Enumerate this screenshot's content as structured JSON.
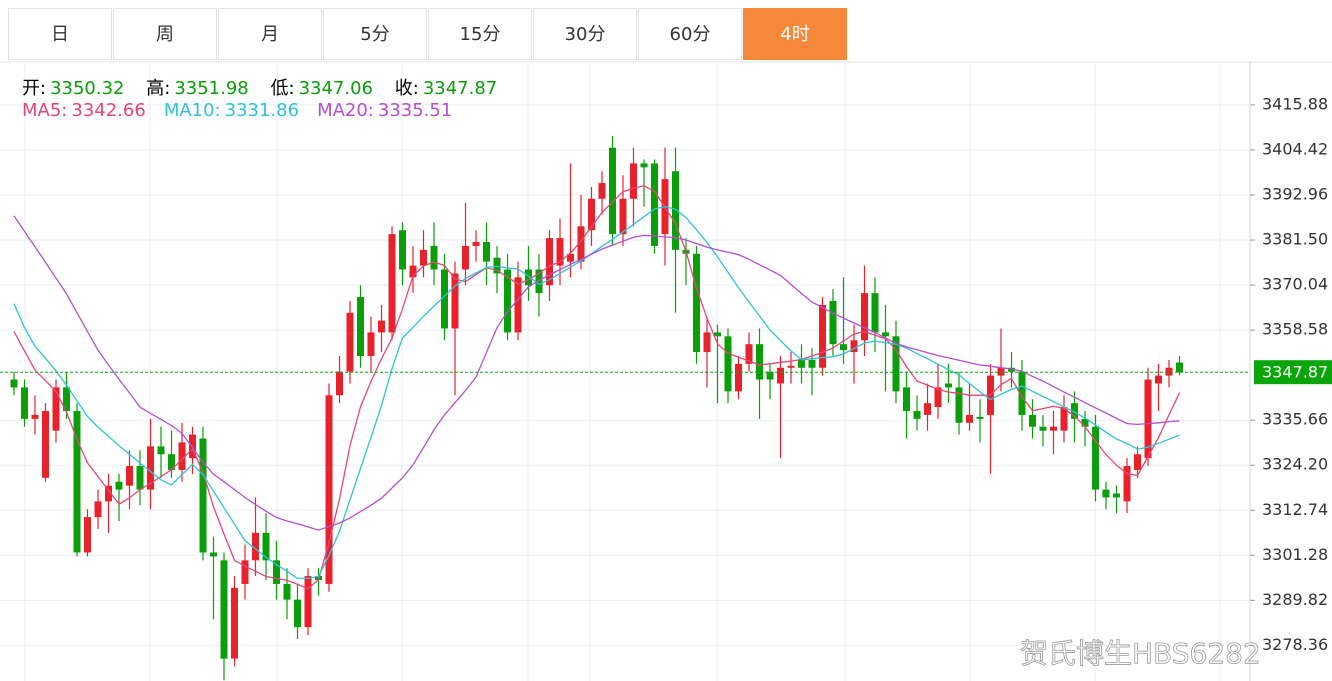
{
  "tabs": [
    {
      "label": "日",
      "active": false
    },
    {
      "label": "周",
      "active": false
    },
    {
      "label": "月",
      "active": false
    },
    {
      "label": "5分",
      "active": false
    },
    {
      "label": "15分",
      "active": false
    },
    {
      "label": "30分",
      "active": false
    },
    {
      "label": "60分",
      "active": false
    },
    {
      "label": "4时",
      "active": true
    }
  ],
  "watermark": "贺氏博生HBS6282",
  "chart_data": {
    "type": "candlestick",
    "ohlc_labels": {
      "open": "开:",
      "high": "高:",
      "low": "低:",
      "close": "收:"
    },
    "up_color": "#e8222b",
    "down_color": "#0a9e0a",
    "ohlc_value_color": "#0a9e0a",
    "open": [
      3346,
      3344,
      3336,
      3321,
      3333,
      3344,
      3338,
      3302,
      3311,
      3315,
      3320,
      3319,
      3324,
      3318,
      3329,
      3327,
      3323,
      3326,
      3331,
      3302,
      3300,
      3275,
      3294,
      3300,
      3307,
      3300,
      3294,
      3290,
      3283,
      3296,
      3294,
      3342,
      3348,
      3367,
      3352,
      3358,
      3358,
      3384,
      3372,
      3375,
      3380,
      3374,
      3359,
      3374,
      3380,
      3381,
      3377,
      3374,
      3358,
      3374,
      3374,
      3370,
      3375,
      3376,
      3376,
      3384,
      3392,
      3405,
      3383,
      3392,
      3401,
      3401,
      3383,
      3399,
      3379,
      3378,
      3353,
      3358,
      3357,
      3343,
      3350,
      3355,
      3348,
      3345,
      3349,
      3351,
      3351,
      3349,
      3366,
      3355,
      3353,
      3356,
      3368,
      3358,
      3357,
      3344,
      3338,
      3337,
      3339,
      3345,
      3344,
      3335,
      3336.5,
      3337,
      3347,
      3349,
      3348,
      3337,
      3334,
      3333,
      3333,
      3340,
      3336,
      3334,
      3318,
      3317,
      3315,
      3323,
      3326,
      3345,
      3347,
      3350.32
    ],
    "high": [
      3348,
      3346,
      3342,
      3340,
      3346,
      3348,
      3340,
      3313,
      3318,
      3322,
      3322,
      3328,
      3328,
      3336,
      3334,
      3333,
      3335,
      3334,
      3334,
      3306,
      3302,
      3296,
      3304,
      3316,
      3312,
      3305,
      3298,
      3294,
      3298,
      3298,
      3345,
      3352,
      3366,
      3370,
      3362,
      3365,
      3385,
      3386,
      3380,
      3384,
      3386,
      3378,
      3376,
      3391,
      3384,
      3386,
      3380,
      3378,
      3376,
      3380,
      3378,
      3384,
      3387,
      3401,
      3393,
      3395,
      3399,
      3408,
      3398,
      3405,
      3402,
      3402,
      3405,
      3405,
      3382,
      3380,
      3362,
      3360,
      3359,
      3352,
      3358,
      3359,
      3350,
      3352,
      3353,
      3355,
      3354,
      3367,
      3369,
      3372,
      3360,
      3375,
      3372,
      3365,
      3361,
      3348,
      3342,
      3345,
      3350,
      3350,
      3348,
      3345,
      3341,
      3350,
      3359,
      3353,
      3351,
      3341,
      3337,
      3338,
      3342,
      3343,
      3338,
      3337,
      3320,
      3319,
      3326,
      3329,
      3349,
      3350,
      3351,
      3351.98
    ],
    "low": [
      3342,
      3334,
      3332,
      3320,
      3330,
      3336,
      3301,
      3301,
      3308,
      3307,
      3310,
      3313,
      3314,
      3313,
      3321,
      3321,
      3320,
      3322,
      3300,
      3285,
      3269.5,
      3273,
      3290,
      3296,
      3295,
      3290,
      3285,
      3280,
      3281,
      3291,
      3292,
      3340,
      3345,
      3349,
      3348,
      3353,
      3356,
      3370,
      3368,
      3372,
      3370,
      3356,
      3342,
      3370,
      3376,
      3370,
      3368,
      3356,
      3356,
      3366,
      3362,
      3366,
      3370,
      3372,
      3374,
      3380,
      3388,
      3380,
      3380,
      3385,
      3390,
      3378,
      3375,
      3363,
      3370,
      3350,
      3344,
      3340,
      3340,
      3341,
      3348,
      3336,
      3341,
      3326,
      3345,
      3345,
      3342,
      3347,
      3352,
      3350,
      3345,
      3352,
      3353,
      3343,
      3340,
      3331,
      3333,
      3333,
      3336,
      3340,
      3332,
      3333,
      3330,
      3322,
      3343,
      3344,
      3333,
      3331,
      3329,
      3327,
      3330,
      3330,
      3329,
      3315,
      3313,
      3312,
      3312,
      3321,
      3324,
      3338,
      3344,
      3347.06
    ],
    "close": [
      3344,
      3336,
      3337,
      3338,
      3344,
      3338,
      3302,
      3311,
      3315,
      3319,
      3318,
      3324,
      3318,
      3329,
      3327,
      3323,
      3330,
      3332,
      3302,
      3301,
      3275,
      3293,
      3300,
      3307,
      3300,
      3294,
      3290,
      3283,
      3296,
      3295,
      3342,
      3348,
      3363,
      3352,
      3358,
      3361,
      3383,
      3374,
      3375,
      3379,
      3374,
      3359,
      3373,
      3380,
      3381,
      3376,
      3373,
      3358,
      3372,
      3370,
      3368,
      3382,
      3382,
      3378,
      3385,
      3392,
      3396,
      3383,
      3392,
      3401,
      3400,
      3380,
      3397,
      3379,
      3378,
      3353,
      3358,
      3357,
      3343,
      3350,
      3355,
      3346,
      3346,
      3349,
      3349.5,
      3349,
      3349,
      3365,
      3355,
      3353.5,
      3356,
      3368,
      3358,
      3357,
      3343,
      3338,
      3336,
      3340,
      3344,
      3344,
      3335,
      3337,
      3336,
      3347,
      3349,
      3348,
      3337,
      3334,
      3333,
      3334,
      3339,
      3336,
      3334,
      3318,
      3316,
      3316,
      3324,
      3327,
      3346,
      3347,
      3349,
      3347.87
    ],
    "series": [
      {
        "name": "MA5:",
        "color": "#e8457a",
        "values": [
          3358.2,
          3353.3,
          3348.4,
          3345.7,
          3343,
          3337.7,
          3330.8,
          3324.8,
          3321.3,
          3317.8,
          3314.3,
          3315.9,
          3318,
          3319.6,
          3321.3,
          3323.1,
          3325.7,
          3328.4,
          3322.4,
          3313.6,
          3306.7,
          3300,
          3298.5,
          3297.2,
          3295.9,
          3295.4,
          3294.9,
          3293.9,
          3292.8,
          3295.1,
          3304.5,
          3315.6,
          3329.2,
          3339.1,
          3345.5,
          3351.3,
          3356.5,
          3364,
          3372.4,
          3374.9,
          3375.9,
          3375,
          3371.6,
          3370.9,
          3372.7,
          3374.4,
          3373.8,
          3372.1,
          3370.3,
          3371.4,
          3373,
          3374.9,
          3376,
          3378.2,
          3381.2,
          3384.9,
          3388.5,
          3391.2,
          3393.8,
          3394.7,
          3395.3,
          3393.9,
          3389.8,
          3385.7,
          3378.6,
          3369.2,
          3361.6,
          3355.1,
          3352.7,
          3351.7,
          3350.7,
          3349.7,
          3350,
          3350.4,
          3350.7,
          3351.1,
          3352,
          3352.9,
          3354,
          3355.8,
          3357.6,
          3358.2,
          3357.3,
          3356.4,
          3353.6,
          3349.3,
          3345.6,
          3344.6,
          3343.5,
          3342.8,
          3342.5,
          3342,
          3342,
          3342.1,
          3344.7,
          3346.3,
          3341.6,
          3338.1,
          3338.6,
          3339.2,
          3338.7,
          3336.7,
          3334,
          3330.4,
          3326.9,
          3324.2,
          3322.1,
          3321.6,
          3326.4,
          3331.2,
          3337,
          3342.66
        ]
      },
      {
        "name": "MA10:",
        "color": "#2ec3d6",
        "values": [
          3365.3,
          3359.2,
          3354.5,
          3351.4,
          3348.2,
          3344.6,
          3340.6,
          3336.6,
          3333.9,
          3331.6,
          3329.2,
          3327,
          3324.8,
          3322.6,
          3320.5,
          3319.2,
          3321.8,
          3324.4,
          3321.8,
          3317.6,
          3313.4,
          3309.2,
          3305,
          3302.9,
          3300.8,
          3298.9,
          3297.2,
          3295.4,
          3295.4,
          3295.9,
          3301.3,
          3307.4,
          3315.4,
          3323.4,
          3331.3,
          3339.4,
          3348.8,
          3356.6,
          3359.3,
          3362.1,
          3364.7,
          3367.2,
          3369.8,
          3371.7,
          3373.1,
          3374.5,
          3374.8,
          3374.4,
          3374.1,
          3372.3,
          3370.2,
          3371.4,
          3373,
          3374.6,
          3376.2,
          3378,
          3379.9,
          3381.7,
          3383.6,
          3385.5,
          3387.4,
          3389.4,
          3390,
          3389.3,
          3387.2,
          3384.1,
          3380.9,
          3377.2,
          3373.3,
          3369.4,
          3365.7,
          3362.2,
          3358.6,
          3355.9,
          3353.3,
          3351,
          3351.3,
          3351.6,
          3351.8,
          3352.5,
          3353.9,
          3355.3,
          3355.8,
          3355.4,
          3355,
          3354,
          3352.6,
          3351.3,
          3349.9,
          3348.5,
          3347.2,
          3345,
          3342.9,
          3340.9,
          3342.3,
          3343.5,
          3344.3,
          3343,
          3341.7,
          3340.4,
          3339,
          3337.7,
          3336.2,
          3334.4,
          3332.6,
          3330.9,
          3329.7,
          3328.3,
          3328.8,
          3329.8,
          3330.8,
          3331.86
        ]
      },
      {
        "name": "MA20:",
        "color": "#b54fd0",
        "values": [
          3387.7,
          3383.7,
          3379.8,
          3375.8,
          3371.8,
          3367.8,
          3363,
          3358.2,
          3353.5,
          3349.7,
          3346.1,
          3342.6,
          3339,
          3337.4,
          3335.9,
          3334.3,
          3332.3,
          3328.7,
          3325,
          3321.9,
          3320,
          3318,
          3316,
          3314.2,
          3312.5,
          3310.9,
          3310,
          3309.3,
          3308.5,
          3307.7,
          3308.6,
          3309.5,
          3310.8,
          3312.4,
          3314,
          3315.8,
          3318.4,
          3321,
          3324.3,
          3328.7,
          3333.2,
          3337,
          3340.1,
          3343.2,
          3346.6,
          3352.9,
          3359.2,
          3363.3,
          3366.4,
          3369.6,
          3371.2,
          3372.6,
          3374,
          3375.3,
          3376.6,
          3377.9,
          3379.2,
          3380.2,
          3381.2,
          3382.2,
          3382.7,
          3382.5,
          3382.3,
          3382.1,
          3381.5,
          3380.6,
          3379.7,
          3379,
          3378.4,
          3377.8,
          3376.6,
          3375.2,
          3373.9,
          3372.5,
          3370.2,
          3367.9,
          3365.7,
          3364.3,
          3362.9,
          3361.6,
          3360.4,
          3359.2,
          3358,
          3356.6,
          3355.2,
          3354.3,
          3353.6,
          3352.8,
          3352.1,
          3351.5,
          3350.9,
          3350.3,
          3349.7,
          3349.4,
          3349,
          3348.7,
          3348.1,
          3346.8,
          3345.6,
          3344.2,
          3342.8,
          3341.5,
          3340.1,
          3338.8,
          3337.5,
          3336.1,
          3334.8,
          3334.6,
          3334.8,
          3335,
          3335.3,
          3335.51
        ]
      }
    ],
    "ylim": [
      3269.3,
      3426.8
    ],
    "yticks": [
      3415.88,
      3404.42,
      3392.96,
      {
        "value": 3381.5,
        "label": "3381.50"
      },
      3370.04,
      3358.58,
      3335.66,
      {
        "value": 3324.2,
        "label": "3324.20"
      },
      3312.74,
      3301.28,
      3289.82,
      3278.36
    ],
    "grid": true,
    "last_price_color": "#0aa50a"
  }
}
